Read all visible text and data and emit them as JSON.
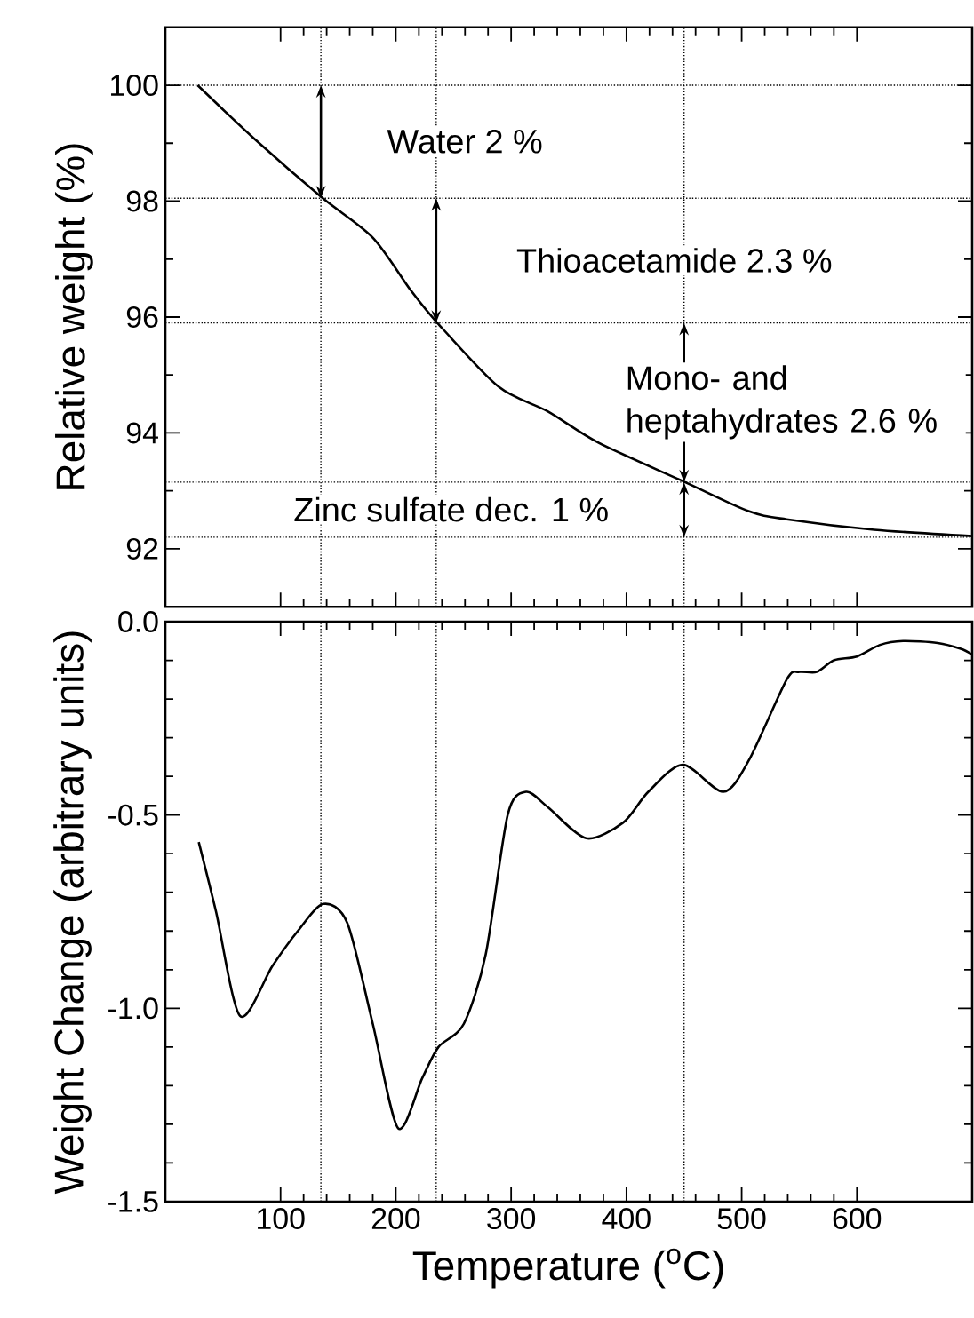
{
  "chart_data": [
    {
      "type": "line",
      "ylabel": "Relative weight (%)",
      "xlim": [
        0,
        700
      ],
      "xticks": [
        100,
        200,
        300,
        400,
        500,
        600
      ],
      "ylim": [
        91,
        101
      ],
      "yticks": [
        92,
        94,
        96,
        98,
        100
      ],
      "tick_labels": "y",
      "series": [
        {
          "color": "#000000",
          "x": [
            28,
            77,
            136,
            180,
            213,
            236,
            289,
            332,
            376,
            452,
            506,
            539,
            615,
            700
          ],
          "values": [
            100,
            99.08,
            98.06,
            97.37,
            96.46,
            95.9,
            94.8,
            94.37,
            93.83,
            93.14,
            92.65,
            92.51,
            92.33,
            92.22
          ]
        }
      ],
      "ref_lines": [
        {
          "axis": "x",
          "value": 135,
          "line_style": "dotted"
        },
        {
          "axis": "x",
          "value": 235,
          "line_style": "dotted"
        },
        {
          "axis": "x",
          "value": 450,
          "line_style": "dotted"
        },
        {
          "axis": "y",
          "value": 100,
          "line_style": "dotted"
        },
        {
          "axis": "y",
          "value": 98.05,
          "line_style": "dotted"
        },
        {
          "axis": "y",
          "value": 95.9,
          "line_style": "dotted"
        },
        {
          "axis": "y",
          "value": 93.15,
          "line_style": "dotted"
        },
        {
          "axis": "y",
          "value": 92.2,
          "line_style": "dotted"
        }
      ],
      "annotations": [
        {
          "text": "Water 2 %",
          "x": 135,
          "y": 99.03
        },
        {
          "text": "Thioacetamide 2.3 %",
          "x": 235,
          "y": 96.98
        },
        {
          "text": "Mono- and heptahydrates 2.6 %",
          "x": 450,
          "y": 94.53
        },
        {
          "text": "Zinc sulfate dec. 1 %",
          "x": 450,
          "y": 92.68
        }
      ]
    },
    {
      "type": "line",
      "xlabel": "Temperature ($^{o}$C)",
      "ylabel": "Weight Change (arbitrary units)",
      "xlim": [
        0,
        700
      ],
      "xticks": [
        100,
        200,
        300,
        400,
        500,
        600
      ],
      "ylim": [
        -1.5,
        0
      ],
      "yticks": [
        {
          "value": -1.5,
          "label": "-1.5"
        },
        {
          "value": -1.0,
          "label": "-1.0"
        },
        {
          "value": -0.5,
          "label": "-0.5"
        },
        {
          "value": 0,
          "label": "0.0"
        }
      ],
      "series": [
        {
          "color": "#000000",
          "x": [
            29,
            44,
            65,
            93,
            115,
            137,
            158,
            180,
            202,
            223,
            237,
            259,
            278,
            297,
            313,
            332,
            365,
            397,
            419,
            449,
            484,
            506,
            539,
            550,
            565,
            580,
            600,
            620,
            640,
            670,
            690,
            700
          ],
          "values": [
            -0.57,
            -0.75,
            -1.02,
            -0.89,
            -0.8,
            -0.73,
            -0.78,
            -1.04,
            -1.31,
            -1.18,
            -1.1,
            -1.04,
            -0.86,
            -0.5,
            -0.44,
            -0.48,
            -0.56,
            -0.52,
            -0.44,
            -0.37,
            -0.44,
            -0.36,
            -0.15,
            -0.13,
            -0.13,
            -0.1,
            -0.09,
            -0.06,
            -0.05,
            -0.055,
            -0.07,
            -0.085
          ]
        }
      ],
      "ref_lines": [
        {
          "axis": "x",
          "value": 135,
          "line_style": "dotted"
        },
        {
          "axis": "x",
          "value": 235,
          "line_style": "dotted"
        },
        {
          "axis": "x",
          "value": 450,
          "line_style": "dotted"
        }
      ]
    }
  ]
}
